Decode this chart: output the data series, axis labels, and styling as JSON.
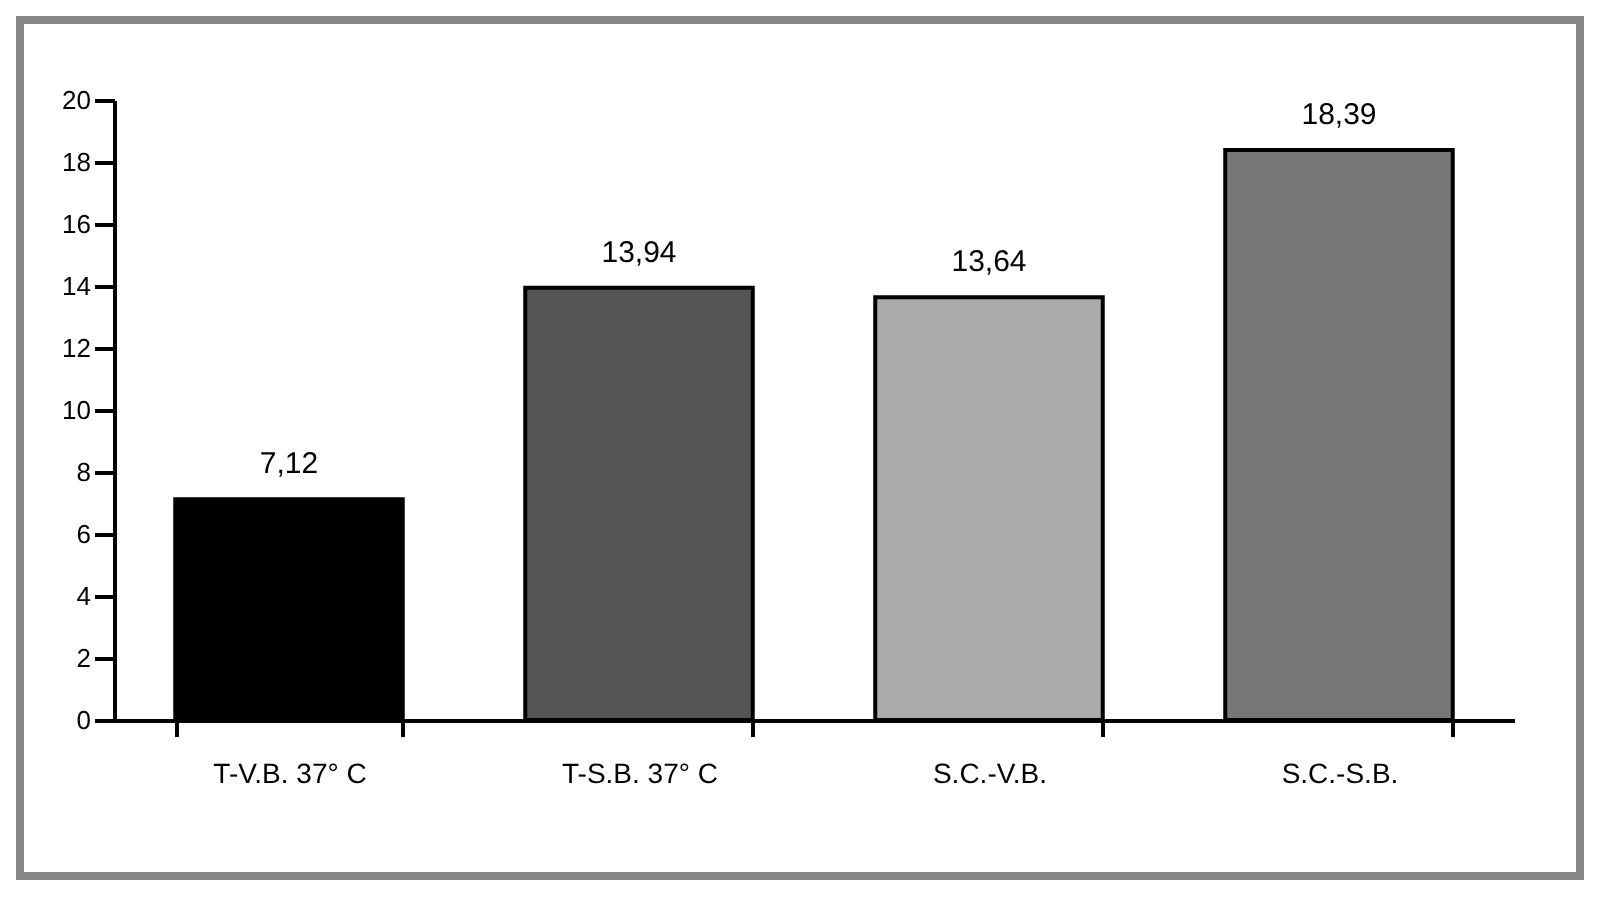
{
  "chart_data": {
    "type": "bar",
    "categories": [
      "T-V.B. 37° C",
      "T-S.B. 37° C",
      "S.C.-V.B.",
      "S.C.-S.B."
    ],
    "values": [
      7.12,
      13.94,
      13.64,
      18.39
    ],
    "colors": [
      "#000000",
      "#555555",
      "#aaaaaa",
      "#777777"
    ],
    "value_labels": [
      "7,12",
      "13,94",
      "13,64",
      "18,39"
    ],
    "ylim": [
      0,
      20
    ],
    "yticks": [
      0,
      2,
      4,
      6,
      8,
      10,
      12,
      14,
      16,
      18,
      20
    ],
    "grid": false,
    "legend": false
  }
}
